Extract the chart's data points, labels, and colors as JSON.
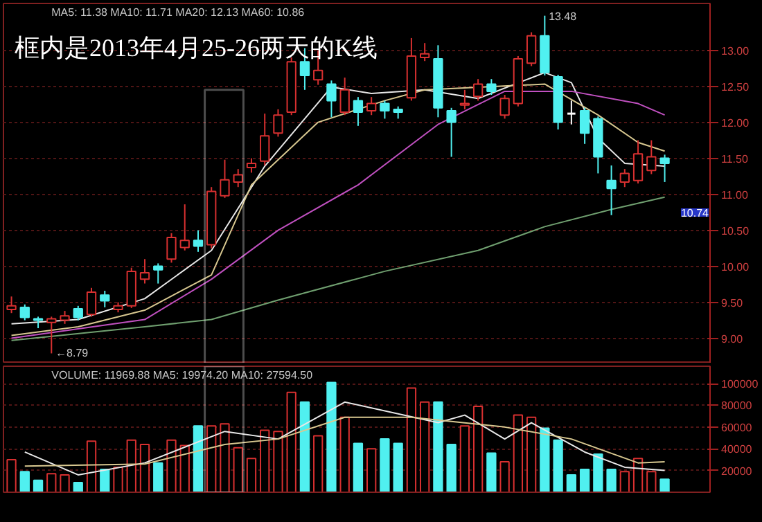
{
  "chart_data": [
    {
      "type": "candlestick",
      "title": "框内是2013年4月25-26两天的K线",
      "subtitle": "MA5: 11.38  MA10: 11.71  MA20: 12.13  MA60: 10.86",
      "categories": [
        null,
        null,
        null,
        null,
        null,
        null,
        null,
        null,
        null,
        null,
        null,
        null,
        null,
        null,
        null,
        null,
        null,
        null,
        null,
        null,
        null,
        null,
        null,
        null,
        null,
        null,
        null,
        null,
        null,
        null,
        null,
        null,
        null,
        null,
        null,
        null,
        null,
        null,
        null,
        null,
        null,
        null,
        null,
        null,
        null,
        null,
        null,
        null,
        null,
        null
      ],
      "ohlc": [
        [
          9.4,
          9.58,
          9.35,
          9.45
        ],
        [
          9.43,
          9.47,
          9.25,
          9.29
        ],
        [
          9.27,
          9.3,
          9.14,
          9.25
        ],
        [
          9.22,
          9.3,
          8.79,
          9.27
        ],
        [
          9.25,
          9.38,
          9.2,
          9.31
        ],
        [
          9.41,
          9.45,
          9.25,
          9.29
        ],
        [
          9.33,
          9.7,
          9.3,
          9.64
        ],
        [
          9.6,
          9.66,
          9.43,
          9.52
        ],
        [
          9.4,
          9.5,
          9.36,
          9.45
        ],
        [
          9.45,
          9.98,
          9.42,
          9.93
        ],
        [
          9.82,
          10.1,
          9.76,
          9.91
        ],
        [
          10.0,
          10.04,
          9.76,
          9.95
        ],
        [
          10.1,
          10.46,
          10.05,
          10.4
        ],
        [
          10.26,
          10.86,
          10.22,
          10.36
        ],
        [
          10.36,
          10.5,
          10.2,
          10.28
        ],
        [
          10.3,
          11.1,
          10.25,
          11.04
        ],
        [
          10.98,
          11.48,
          10.95,
          11.2
        ],
        [
          11.17,
          11.35,
          11.1,
          11.27
        ],
        [
          11.37,
          11.5,
          11.3,
          11.43
        ],
        [
          11.46,
          12.12,
          11.4,
          11.81
        ],
        [
          11.85,
          12.18,
          11.8,
          12.1
        ],
        [
          12.14,
          12.9,
          12.1,
          12.84
        ],
        [
          12.84,
          13.03,
          12.45,
          12.65
        ],
        [
          12.59,
          13.0,
          12.52,
          12.72
        ],
        [
          12.53,
          12.58,
          12.07,
          12.3
        ],
        [
          12.14,
          12.62,
          12.1,
          12.45
        ],
        [
          12.3,
          12.35,
          11.95,
          12.14
        ],
        [
          12.16,
          12.35,
          12.1,
          12.26
        ],
        [
          12.26,
          12.3,
          12.05,
          12.16
        ],
        [
          12.18,
          12.22,
          12.05,
          12.14
        ],
        [
          12.34,
          13.17,
          12.3,
          12.92
        ],
        [
          12.9,
          13.1,
          12.85,
          12.95
        ],
        [
          12.88,
          13.07,
          12.07,
          12.2
        ],
        [
          12.16,
          12.2,
          11.52,
          12.0
        ],
        [
          12.24,
          12.45,
          12.18,
          12.26
        ],
        [
          12.36,
          12.6,
          12.3,
          12.53
        ],
        [
          12.53,
          12.6,
          12.38,
          12.43
        ],
        [
          12.1,
          12.38,
          12.05,
          12.33
        ],
        [
          12.26,
          12.92,
          12.22,
          12.88
        ],
        [
          12.82,
          13.25,
          12.78,
          13.2
        ],
        [
          13.2,
          13.48,
          12.65,
          12.69
        ],
        [
          12.63,
          12.66,
          11.9,
          12.0
        ],
        [
          12.12,
          12.3,
          11.97,
          12.12
        ],
        [
          12.16,
          12.2,
          11.7,
          11.85
        ],
        [
          12.05,
          12.08,
          11.29,
          11.52
        ],
        [
          11.19,
          11.4,
          10.71,
          11.08
        ],
        [
          11.17,
          11.35,
          11.1,
          11.29
        ],
        [
          11.19,
          11.75,
          11.15,
          11.56
        ],
        [
          11.33,
          11.75,
          11.28,
          11.52
        ],
        [
          11.5,
          11.55,
          11.17,
          11.43
        ]
      ],
      "colors": [
        "#d83030",
        "#50f0f0",
        "#50f0f0",
        "#d83030",
        "#d83030",
        "#50f0f0",
        "#d83030",
        "#50f0f0",
        "#d83030",
        "#d83030",
        "#d83030",
        "#50f0f0",
        "#d83030",
        "#d83030",
        "#50f0f0",
        "#d83030",
        "#d83030",
        "#d83030",
        "#d83030",
        "#d83030",
        "#d83030",
        "#d83030",
        "#50f0f0",
        "#d83030",
        "#50f0f0",
        "#d83030",
        "#50f0f0",
        "#d83030",
        "#50f0f0",
        "#50f0f0",
        "#d83030",
        "#d83030",
        "#50f0f0",
        "#50f0f0",
        "#d83030",
        "#d83030",
        "#50f0f0",
        "#d83030",
        "#d83030",
        "#d83030",
        "#50f0f0",
        "#50f0f0",
        "#ffffff",
        "#50f0f0",
        "#50f0f0",
        "#50f0f0",
        "#d83030",
        "#d83030",
        "#d83030",
        "#50f0f0"
      ],
      "series": [
        {
          "type": "line",
          "color": "#e8e8e8",
          "values": [
            9.2,
            null,
            null,
            null,
            null,
            9.26,
            null,
            null,
            null,
            null,
            9.55,
            null,
            null,
            null,
            null,
            10.22,
            null,
            null,
            null,
            11.39,
            null,
            null,
            null,
            null,
            12.49,
            null,
            null,
            12.4,
            null,
            null,
            null,
            12.45,
            null,
            null,
            null,
            12.33,
            null,
            null,
            null,
            null,
            12.69,
            null,
            12.55,
            null,
            11.78,
            null,
            11.43,
            null,
            null,
            11.39
          ]
        },
        {
          "type": "line",
          "color": "#d8c890",
          "values": [
            9.04,
            null,
            null,
            null,
            null,
            9.16,
            null,
            null,
            null,
            null,
            9.39,
            null,
            null,
            null,
            null,
            9.88,
            null,
            null,
            11.13,
            null,
            null,
            null,
            null,
            12.0,
            null,
            null,
            null,
            null,
            12.3,
            null,
            null,
            12.45,
            null,
            null,
            null,
            null,
            null,
            null,
            null,
            null,
            12.53,
            null,
            null,
            null,
            12.1,
            null,
            null,
            11.72,
            null,
            11.6
          ]
        },
        {
          "type": "line",
          "color": "#c050c0",
          "values": [
            9.0,
            null,
            null,
            null,
            null,
            null,
            null,
            null,
            null,
            null,
            9.26,
            null,
            null,
            null,
            null,
            9.82,
            null,
            null,
            null,
            null,
            10.5,
            null,
            null,
            null,
            null,
            null,
            11.13,
            null,
            null,
            null,
            null,
            null,
            11.97,
            null,
            null,
            null,
            null,
            12.43,
            null,
            null,
            null,
            null,
            12.43,
            null,
            null,
            null,
            null,
            12.26,
            null,
            12.1
          ]
        },
        {
          "type": "line",
          "color": "#70a070",
          "values": [
            8.97,
            null,
            null,
            null,
            null,
            null,
            null,
            null,
            null,
            null,
            9.16,
            null,
            null,
            null,
            null,
            9.26,
            null,
            null,
            null,
            null,
            9.53,
            null,
            null,
            null,
            null,
            null,
            null,
            null,
            9.93,
            null,
            null,
            null,
            null,
            null,
            null,
            10.22,
            null,
            null,
            null,
            null,
            10.55,
            null,
            null,
            null,
            null,
            10.79,
            null,
            null,
            null,
            10.96
          ]
        }
      ],
      "ylim": [
        8.65,
        13.65
      ],
      "yticks": [
        {
          "value": 9,
          "label": "9.00"
        },
        {
          "value": 9.5,
          "label": "9.50"
        },
        {
          "value": 10,
          "label": "10.00"
        },
        {
          "value": 10.5,
          "label": "10.50"
        },
        {
          "value": 11,
          "label": "11.00"
        },
        {
          "value": 11.5,
          "label": "11.50"
        },
        {
          "value": 12,
          "label": "12.00"
        },
        {
          "value": 12.5,
          "label": "12.50"
        },
        {
          "value": 13,
          "label": "13.00"
        }
      ],
      "grid": "y",
      "annotations": [
        "13.48",
        "←8.79",
        "10.74"
      ]
    },
    {
      "type": "bar",
      "subtitle": "VOLUME: 11969.88  MA5: 19974.20  MA10: 27594.50",
      "categories": [
        null,
        null,
        null,
        null,
        null,
        null,
        null,
        null,
        null,
        null,
        null,
        null,
        null,
        null,
        null,
        null,
        null,
        null,
        null,
        null,
        null,
        null,
        null,
        null,
        null,
        null,
        null,
        null,
        null,
        null,
        null,
        null,
        null,
        null,
        null,
        null,
        null,
        null,
        null,
        null,
        null,
        null,
        null,
        null,
        null,
        null,
        null,
        null,
        null,
        null
      ],
      "values": [
        30000,
        19000,
        11000,
        17000,
        16000,
        9000,
        47000,
        21000,
        23000,
        48000,
        44000,
        27000,
        48000,
        43000,
        61000,
        61000,
        63000,
        41000,
        31000,
        57000,
        56000,
        92000,
        83000,
        52000,
        101000,
        69000,
        45000,
        40000,
        49000,
        45000,
        96000,
        83000,
        83000,
        44000,
        61000,
        79000,
        36000,
        28000,
        71000,
        69000,
        59000,
        48000,
        16000,
        21000,
        35000,
        21000,
        19000,
        31000,
        19000,
        12000
      ],
      "colors": [
        "#d83030",
        "#50f0f0",
        "#50f0f0",
        "#d83030",
        "#d83030",
        "#50f0f0",
        "#d83030",
        "#50f0f0",
        "#d83030",
        "#d83030",
        "#d83030",
        "#50f0f0",
        "#d83030",
        "#d83030",
        "#50f0f0",
        "#d83030",
        "#d83030",
        "#d83030",
        "#d83030",
        "#d83030",
        "#d83030",
        "#d83030",
        "#50f0f0",
        "#d83030",
        "#50f0f0",
        "#d83030",
        "#50f0f0",
        "#d83030",
        "#50f0f0",
        "#50f0f0",
        "#d83030",
        "#d83030",
        "#50f0f0",
        "#50f0f0",
        "#d83030",
        "#d83030",
        "#50f0f0",
        "#d83030",
        "#d83030",
        "#d83030",
        "#50f0f0",
        "#50f0f0",
        "#50f0f0",
        "#50f0f0",
        "#50f0f0",
        "#50f0f0",
        "#d83030",
        "#d83030",
        "#d83030",
        "#50f0f0"
      ],
      "series": [
        {
          "type": "line",
          "color": "#e8e8e8",
          "values": [
            null,
            37000,
            null,
            null,
            null,
            16000,
            null,
            null,
            null,
            null,
            27000,
            null,
            null,
            null,
            null,
            null,
            56000,
            null,
            null,
            null,
            49000,
            null,
            null,
            null,
            null,
            83000,
            null,
            null,
            null,
            null,
            null,
            null,
            64000,
            null,
            71000,
            null,
            null,
            49000,
            null,
            64000,
            null,
            null,
            null,
            37000,
            null,
            null,
            23000,
            null,
            null,
            20000
          ]
        },
        {
          "type": "line",
          "color": "#d8c890",
          "values": [
            null,
            24000,
            null,
            null,
            null,
            null,
            null,
            null,
            null,
            null,
            26000,
            null,
            null,
            null,
            null,
            null,
            44000,
            null,
            null,
            null,
            49000,
            null,
            null,
            null,
            null,
            69000,
            null,
            null,
            null,
            null,
            69000,
            null,
            null,
            null,
            null,
            null,
            null,
            60000,
            null,
            null,
            null,
            null,
            49000,
            null,
            null,
            null,
            null,
            27000,
            null,
            28000
          ]
        }
      ],
      "ylim": [
        0,
        116000
      ],
      "yticks": [
        20000,
        40000,
        60000,
        80000,
        100000
      ],
      "grid": "y"
    }
  ]
}
